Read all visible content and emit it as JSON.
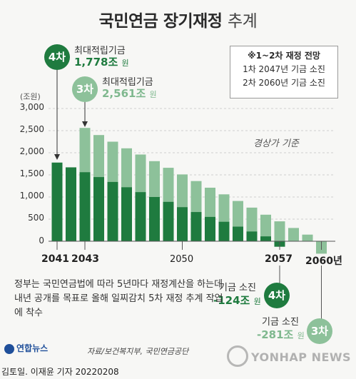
{
  "title": {
    "main": "국민연금 장기재정",
    "sub": "추계"
  },
  "legend_box": {
    "heading": "※1~2차 재정 전망",
    "line1": "1차  2047년 기금 소진",
    "line2": "2차  2060년 기금 소진"
  },
  "basis_label": "경상가 기준",
  "annotations": {
    "peak4": {
      "badge": "4차",
      "label": "최대적립기금",
      "value": "1,778조",
      "unit": "원"
    },
    "peak3": {
      "badge": "3차",
      "label": "최대적립기금",
      "value": "2,561조",
      "unit": "원"
    },
    "low4": {
      "badge": "4차",
      "label": "기금 소진",
      "value": "-124조",
      "unit": "원"
    },
    "low3": {
      "badge": "3차",
      "label": "기금 소진",
      "value": "-281조",
      "unit": "원"
    }
  },
  "note": "정부는 국민연금법에 따라 5년마다 재정계산을 하는데 내년 공개를 목표로 올해 일찌감치 5차 재정 추계 작업에 착수",
  "source": "자료/보건복지부, 국민연금공단",
  "logo": "연합뉴스",
  "watermark": "YONHAP NEWS",
  "credit": "김토일. 이재윤 기자 20220208",
  "colors": {
    "series4": "#1f7b3f",
    "series3": "#8dc19a"
  },
  "chart_data": {
    "type": "bar",
    "ylabel": "(조원)",
    "ylim": [
      -300,
      3000
    ],
    "yticks": [
      3000,
      2500,
      2000,
      1500,
      1000,
      500,
      0
    ],
    "ytick_labels": [
      "3,000",
      "2,500",
      "2,000",
      "1,500",
      "1,000",
      "500",
      "0"
    ],
    "x_tick_labels": [
      {
        "year": 2041,
        "label": "2041",
        "bold": true
      },
      {
        "year": 2043,
        "label": "2043",
        "bold": true
      },
      {
        "year": 2050,
        "label": "2050",
        "bold": false
      },
      {
        "year": 2057,
        "label": "2057",
        "bold": true
      },
      {
        "year": 2060,
        "label": "2060년",
        "bold": true
      }
    ],
    "series": [
      {
        "name": "4차",
        "points": [
          {
            "x": 2041,
            "y": 1778
          },
          {
            "x": 2042,
            "y": 1670
          },
          {
            "x": 2043,
            "y": 1560
          },
          {
            "x": 2044,
            "y": 1450
          },
          {
            "x": 2045,
            "y": 1340
          },
          {
            "x": 2046,
            "y": 1220
          },
          {
            "x": 2047,
            "y": 1110
          },
          {
            "x": 2048,
            "y": 1000
          },
          {
            "x": 2049,
            "y": 890
          },
          {
            "x": 2050,
            "y": 770
          },
          {
            "x": 2051,
            "y": 660
          },
          {
            "x": 2052,
            "y": 550
          },
          {
            "x": 2053,
            "y": 440
          },
          {
            "x": 2054,
            "y": 330
          },
          {
            "x": 2055,
            "y": 220
          },
          {
            "x": 2056,
            "y": 110
          },
          {
            "x": 2057,
            "y": -124
          }
        ]
      },
      {
        "name": "3차",
        "points": [
          {
            "x": 2043,
            "y": 2561
          },
          {
            "x": 2044,
            "y": 2400
          },
          {
            "x": 2045,
            "y": 2250
          },
          {
            "x": 2046,
            "y": 2100
          },
          {
            "x": 2047,
            "y": 1960
          },
          {
            "x": 2048,
            "y": 1810
          },
          {
            "x": 2049,
            "y": 1660
          },
          {
            "x": 2050,
            "y": 1510
          },
          {
            "x": 2051,
            "y": 1360
          },
          {
            "x": 2052,
            "y": 1210
          },
          {
            "x": 2053,
            "y": 1060
          },
          {
            "x": 2054,
            "y": 910
          },
          {
            "x": 2055,
            "y": 760
          },
          {
            "x": 2056,
            "y": 600
          },
          {
            "x": 2057,
            "y": 450
          },
          {
            "x": 2058,
            "y": 300
          },
          {
            "x": 2059,
            "y": 150
          },
          {
            "x": 2060,
            "y": -281
          }
        ]
      }
    ]
  }
}
